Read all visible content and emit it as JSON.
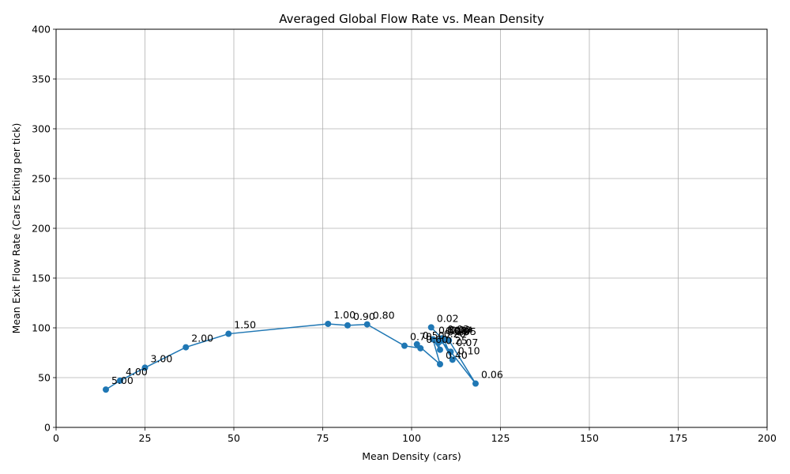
{
  "chart_data": {
    "type": "line",
    "title": "Averaged Global Flow Rate vs. Mean Density",
    "xlabel": "Mean Density (cars)",
    "ylabel": "Mean Exit Flow Rate (Cars Exiting per tick)",
    "xlim": [
      0,
      200
    ],
    "ylim": [
      0,
      400
    ],
    "xticks": [
      0,
      25,
      50,
      75,
      100,
      125,
      150,
      175,
      200
    ],
    "yticks": [
      0,
      50,
      100,
      150,
      200,
      250,
      300,
      350,
      400
    ],
    "grid": true,
    "series": [
      {
        "color": "#1f77b4",
        "points": [
          {
            "label": "5.00",
            "x": 14.0,
            "y": 38.0
          },
          {
            "label": "4.00",
            "x": 18.0,
            "y": 47.0
          },
          {
            "label": "3.00",
            "x": 25.0,
            "y": 60.0
          },
          {
            "label": "2.00",
            "x": 36.5,
            "y": 80.5
          },
          {
            "label": "1.50",
            "x": 48.5,
            "y": 94.0
          },
          {
            "label": "1.00",
            "x": 76.5,
            "y": 104.0
          },
          {
            "label": "0.90",
            "x": 82.0,
            "y": 102.5
          },
          {
            "label": "0.80",
            "x": 87.5,
            "y": 103.5
          },
          {
            "label": "0.70",
            "x": 98.0,
            "y": 82.0
          },
          {
            "label": "0.60",
            "x": 102.5,
            "y": 79.5
          },
          {
            "label": "0.50",
            "x": 101.5,
            "y": 83.5
          },
          {
            "label": "0.40",
            "x": 108.0,
            "y": 63.5
          },
          {
            "label": "0.30",
            "x": 106.0,
            "y": 88.5
          },
          {
            "label": "0.25",
            "x": 108.0,
            "y": 78.0
          },
          {
            "label": "0.20",
            "x": 107.5,
            "y": 85.0
          },
          {
            "label": "0.15",
            "x": 108.5,
            "y": 87.0
          },
          {
            "label": "0.10",
            "x": 111.5,
            "y": 68.0
          },
          {
            "label": "0.09",
            "x": 109.0,
            "y": 89.0
          },
          {
            "label": "0.08",
            "x": 108.0,
            "y": 88.0
          },
          {
            "label": "0.07",
            "x": 111.0,
            "y": 76.0
          },
          {
            "label": "0.06",
            "x": 118.0,
            "y": 44.0
          },
          {
            "label": "0.05",
            "x": 110.5,
            "y": 87.5
          },
          {
            "label": "0.04",
            "x": 109.5,
            "y": 88.5
          },
          {
            "label": "0.03",
            "x": 108.5,
            "y": 89.5
          },
          {
            "label": "0.02",
            "x": 105.5,
            "y": 100.5
          }
        ]
      }
    ]
  }
}
